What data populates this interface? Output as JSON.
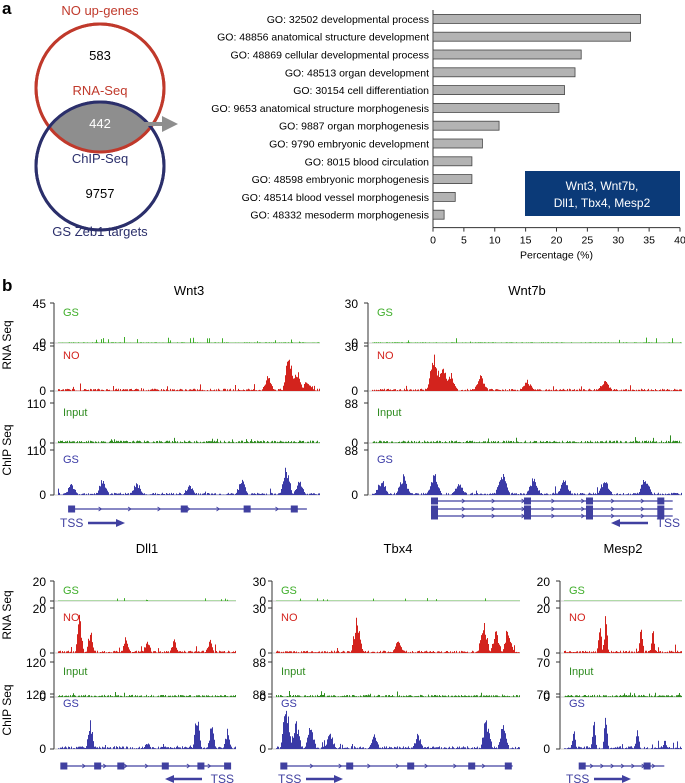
{
  "panel_a": {
    "letter": "a",
    "venn": {
      "top_title": "NO up-genes",
      "top_count": "583",
      "top_label": "RNA-Seq",
      "overlap_count": "442",
      "bottom_label": "ChIP-Seq",
      "bottom_count": "9757",
      "bottom_title": "GS Zeb1 targets",
      "red": "#c0392b",
      "navy": "#2b2f6b"
    },
    "legend_box": {
      "line1": "Wnt3, Wnt7b,",
      "line2": "Dll1, Tbx4, Mesp2",
      "color": "#0b3a78"
    }
  },
  "chart_data": {
    "type": "bar",
    "orientation": "horizontal",
    "categories": [
      "GO: 32502 developmental process",
      "GO: 48856 anatomical structure development",
      "GO: 48869 cellular developmental process",
      "GO: 48513 organ development",
      "GO: 30154 cell differentiation",
      "GO: 9653 anatomical structure morphogenesis",
      "GO: 9887 organ morphogenesis",
      "GO: 9790 embryonic development",
      "GO: 8015 blood circulation",
      "GO: 48598 embryonic morphogenesis",
      "GO: 48514 blood vessel morphogenesis",
      "GO: 48332 mesoderm morphogenesis"
    ],
    "values": [
      33.6,
      32.0,
      24.0,
      23.0,
      21.3,
      20.4,
      10.7,
      8.0,
      6.3,
      6.3,
      3.6,
      1.8
    ],
    "xlabel": "Percentage (%)",
    "xlim": [
      0,
      40
    ],
    "xticks": [
      "0",
      "5",
      "10",
      "15",
      "20",
      "25",
      "30",
      "35",
      "40"
    ],
    "bar_color": "#b3b3b3"
  },
  "panel_b": {
    "letter": "b",
    "row_labels": {
      "rna": "RNA Seq",
      "chip": "ChIP Seq"
    },
    "tss_label": "TSS",
    "track_names": {
      "gs": "GS",
      "no": "NO",
      "input": "Input"
    },
    "colors": {
      "gs": "#3fae2a",
      "no": "#d3231d",
      "input": "#2e8b1f",
      "chip": "#3a3aa6",
      "gene": "#4040a0"
    },
    "genes": [
      {
        "name": "Wnt3",
        "scales": {
          "rna": "45",
          "chip": "110"
        },
        "zero": "0"
      },
      {
        "name": "Wnt7b",
        "scales": {
          "rna": "30",
          "chip": "88"
        },
        "zero": "0"
      },
      {
        "name": "Dll1",
        "scales": {
          "rna": "20",
          "chip": "120"
        },
        "zero": "0"
      },
      {
        "name": "Tbx4",
        "scales": {
          "rna": "30",
          "chip": "88"
        },
        "zero": "0"
      },
      {
        "name": "Mesp2",
        "scales": {
          "rna": "20",
          "chip": "70"
        },
        "zero": "0"
      }
    ]
  }
}
